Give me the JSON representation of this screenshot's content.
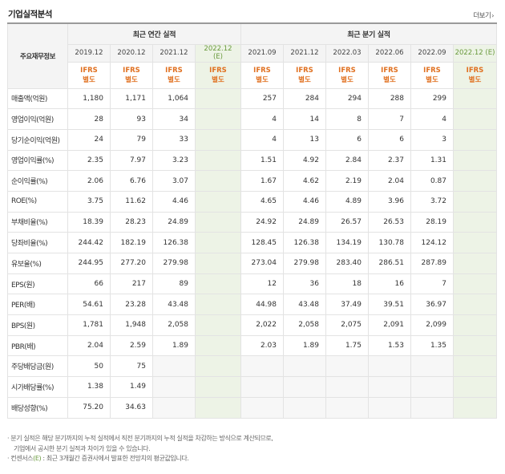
{
  "header": {
    "title": "기업실적분석",
    "more_label": "더보기",
    "more_icon": "chevron-right"
  },
  "table": {
    "row_header": "주요재무정보",
    "annual_title": "최근 연간 실적",
    "quarter_title": "최근 분기 실적",
    "annual_periods": [
      "2019.12",
      "2020.12",
      "2021.12",
      "2022.12"
    ],
    "annual_est_suffix": "(E)",
    "quarter_periods": [
      "2021.09",
      "2021.12",
      "2022.03",
      "2022.06",
      "2022.09",
      "2022.12 (E)"
    ],
    "ifrs_line1": "IFRS",
    "ifrs_line2": "별도",
    "rows": [
      {
        "label": "매출액(억원)",
        "values": [
          "1,180",
          "1,171",
          "1,064",
          "",
          "257",
          "284",
          "294",
          "288",
          "299",
          ""
        ]
      },
      {
        "label": "영업이익(억원)",
        "values": [
          "28",
          "93",
          "34",
          "",
          "4",
          "14",
          "8",
          "7",
          "4",
          ""
        ]
      },
      {
        "label": "당기순이익(억원)",
        "values": [
          "24",
          "79",
          "33",
          "",
          "4",
          "13",
          "6",
          "6",
          "3",
          ""
        ]
      },
      {
        "label": "영업이익률(%)",
        "values": [
          "2.35",
          "7.97",
          "3.23",
          "",
          "1.51",
          "4.92",
          "2.84",
          "2.37",
          "1.31",
          ""
        ]
      },
      {
        "label": "순이익률(%)",
        "values": [
          "2.06",
          "6.76",
          "3.07",
          "",
          "1.67",
          "4.62",
          "2.19",
          "2.04",
          "0.87",
          ""
        ]
      },
      {
        "label": "ROE(%)",
        "values": [
          "3.75",
          "11.62",
          "4.46",
          "",
          "4.65",
          "4.46",
          "4.89",
          "3.96",
          "3.72",
          ""
        ]
      },
      {
        "label": "부채비율(%)",
        "values": [
          "18.39",
          "28.23",
          "24.89",
          "",
          "24.92",
          "24.89",
          "26.57",
          "26.53",
          "28.19",
          ""
        ]
      },
      {
        "label": "당좌비율(%)",
        "values": [
          "244.42",
          "182.19",
          "126.38",
          "",
          "128.45",
          "126.38",
          "134.19",
          "130.78",
          "124.12",
          ""
        ]
      },
      {
        "label": "유보율(%)",
        "values": [
          "244.95",
          "277.20",
          "279.98",
          "",
          "273.04",
          "279.98",
          "283.40",
          "286.51",
          "287.89",
          ""
        ]
      },
      {
        "label": "EPS(원)",
        "values": [
          "66",
          "217",
          "89",
          "",
          "12",
          "36",
          "18",
          "16",
          "7",
          ""
        ]
      },
      {
        "label": "PER(배)",
        "values": [
          "54.61",
          "23.28",
          "43.48",
          "",
          "44.98",
          "43.48",
          "37.49",
          "39.51",
          "36.97",
          ""
        ]
      },
      {
        "label": "BPS(원)",
        "values": [
          "1,781",
          "1,948",
          "2,058",
          "",
          "2,022",
          "2,058",
          "2,075",
          "2,091",
          "2,099",
          ""
        ]
      },
      {
        "label": "PBR(배)",
        "values": [
          "2.04",
          "2.59",
          "1.89",
          "",
          "2.03",
          "1.89",
          "1.75",
          "1.53",
          "1.35",
          ""
        ]
      },
      {
        "label": "주당배당금(원)",
        "values": [
          "50",
          "75",
          "",
          "",
          "",
          "",
          "",
          "",
          "",
          ""
        ]
      },
      {
        "label": "시가배당률(%)",
        "values": [
          "1.38",
          "1.49",
          "",
          "",
          "",
          "",
          "",
          "",
          "",
          ""
        ]
      },
      {
        "label": "배당성향(%)",
        "values": [
          "75.20",
          "34.63",
          "",
          "",
          "",
          "",
          "",
          "",
          "",
          ""
        ]
      }
    ]
  },
  "notes": {
    "line1": "· 분기 실적은 해당 분기까지의 누적 실적에서 직전 분기까지의 누적 실적을 차감하는 방식으로 계산되므로,",
    "line2": "기업에서 공시한 분기 실적과 차이가 있을 수 있습니다.",
    "line3_prefix": "· 컨센서스",
    "line3_mark": "(E)",
    "line3_suffix": " : 최근 3개월간 증권사에서 발표한 전망치의 평균값입니다."
  },
  "colors": {
    "accent_orange": "#e07020",
    "estimate_green": "#6a9a3d",
    "estimate_bg": "#edf3e6"
  }
}
